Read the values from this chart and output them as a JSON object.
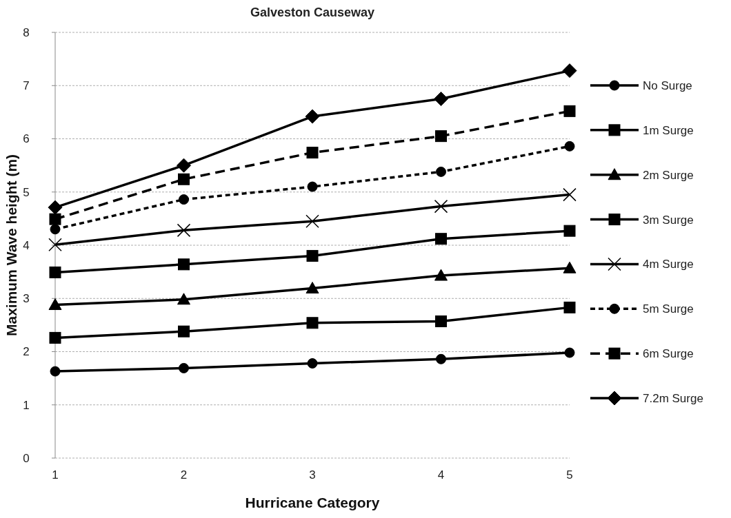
{
  "chart_data": {
    "type": "line",
    "title": "Galveston Causeway",
    "xlabel": "Hurricane Category",
    "ylabel": "Maximum Wave height (m)",
    "x": [
      1,
      2,
      3,
      4,
      5
    ],
    "xlim": [
      1,
      5
    ],
    "xticks": [
      1,
      2,
      3,
      4,
      5
    ],
    "ylim": [
      0,
      8
    ],
    "yticks": [
      0,
      1,
      2,
      3,
      4,
      5,
      6,
      7,
      8
    ],
    "grid": "y",
    "legend": "right",
    "series": [
      {
        "name": "No Surge",
        "color": "#000000",
        "marker": "circle",
        "line_style": "solid",
        "values": [
          1.63,
          1.69,
          1.78,
          1.86,
          1.98
        ]
      },
      {
        "name": "1m Surge",
        "color": "#000000",
        "marker": "square",
        "line_style": "solid",
        "values": [
          2.26,
          2.38,
          2.54,
          2.57,
          2.83
        ]
      },
      {
        "name": "2m Surge",
        "color": "#000000",
        "marker": "triangle",
        "line_style": "solid",
        "values": [
          2.88,
          2.98,
          3.19,
          3.43,
          3.57
        ]
      },
      {
        "name": "3m Surge",
        "color": "#000000",
        "marker": "square",
        "line_style": "solid",
        "values": [
          3.49,
          3.64,
          3.8,
          4.12,
          4.27
        ]
      },
      {
        "name": "4m Surge",
        "color": "#000000",
        "marker": "cross",
        "line_style": "solid",
        "values": [
          4.01,
          4.28,
          4.45,
          4.73,
          4.95
        ]
      },
      {
        "name": "5m Surge",
        "color": "#000000",
        "marker": "circle",
        "line_style": "dotted",
        "values": [
          4.3,
          4.86,
          5.1,
          5.38,
          5.86
        ]
      },
      {
        "name": "6m Surge",
        "color": "#000000",
        "marker": "square",
        "line_style": "dashed",
        "values": [
          4.49,
          5.24,
          5.74,
          6.05,
          6.52
        ]
      },
      {
        "name": "7.2m Surge",
        "color": "#000000",
        "marker": "diamond",
        "line_style": "solid",
        "values": [
          4.71,
          5.5,
          6.42,
          6.75,
          7.28
        ]
      }
    ]
  }
}
